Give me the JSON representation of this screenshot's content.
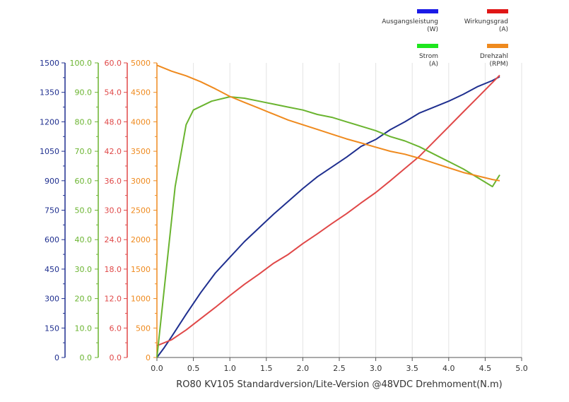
{
  "chart_data": {
    "type": "line",
    "xlabel": "RO80 KV105 Standardversion/Lite-Version @48VDC Drehmoment(N.m)",
    "x_axis": {
      "range": [
        0,
        5.0
      ],
      "ticks": [
        "0.0",
        "0.5",
        "1.0",
        "1.5",
        "2.0",
        "2.5",
        "3.0",
        "3.5",
        "4.0",
        "4.5",
        "5.0"
      ]
    },
    "grid": "vertical",
    "legend_position": "top-right",
    "y_axes": [
      {
        "id": "power",
        "color": "#1f2f8f",
        "range": [
          0,
          1500
        ],
        "ticks": [
          "0",
          "150",
          "300",
          "450",
          "600",
          "750",
          "900",
          "1050",
          "1200",
          "1350",
          "1500"
        ]
      },
      {
        "id": "current",
        "color": "#6ab42f",
        "range": [
          0,
          100
        ],
        "ticks": [
          "0.0",
          "10.0",
          "20.0",
          "30.0",
          "40.0",
          "50.0",
          "60.0",
          "70.0",
          "80.0",
          "90.0",
          "100.0"
        ]
      },
      {
        "id": "efficiency",
        "color": "#e04848",
        "range": [
          0,
          60
        ],
        "ticks": [
          "0.0",
          "6.0",
          "12.0",
          "18.0",
          "24.0",
          "30.0",
          "36.0",
          "42.0",
          "48.0",
          "54.0",
          "60.0"
        ]
      },
      {
        "id": "rpm",
        "color": "#ef8a1e",
        "range": [
          0,
          5000
        ],
        "ticks": [
          "0",
          "500",
          "1000",
          "1500",
          "2000",
          "2500",
          "3000",
          "3500",
          "4000",
          "4500",
          "5000"
        ]
      }
    ],
    "series": [
      {
        "name": "Ausgangsleistung",
        "unit": "(W)",
        "axis": "power",
        "color": "#1f2f8f",
        "legend_color": "#1a1ae6",
        "x": [
          0,
          0.1,
          0.2,
          0.4,
          0.6,
          0.8,
          1.0,
          1.2,
          1.4,
          1.6,
          1.8,
          2.0,
          2.2,
          2.4,
          2.6,
          2.8,
          3.0,
          3.2,
          3.4,
          3.6,
          3.8,
          4.0,
          4.2,
          4.4,
          4.6,
          4.7
        ],
        "values": [
          0,
          50,
          105,
          220,
          330,
          430,
          510,
          590,
          660,
          730,
          795,
          860,
          920,
          970,
          1020,
          1075,
          1110,
          1160,
          1200,
          1245,
          1275,
          1305,
          1340,
          1380,
          1410,
          1430
        ]
      },
      {
        "name": "Wirkungsgrad",
        "unit": "(A)",
        "axis": "efficiency",
        "color": "#e04848",
        "legend_color": "#e01616",
        "x": [
          0,
          0.2,
          0.4,
          0.6,
          0.8,
          1.0,
          1.2,
          1.4,
          1.6,
          1.8,
          2.0,
          2.2,
          2.4,
          2.6,
          2.8,
          3.0,
          3.2,
          3.4,
          3.6,
          3.8,
          4.0,
          4.2,
          4.4,
          4.6,
          4.7
        ],
        "values": [
          2.4,
          3.6,
          5.6,
          7.9,
          10.2,
          12.6,
          14.9,
          17.0,
          19.2,
          21.0,
          23.2,
          25.2,
          27.3,
          29.3,
          31.5,
          33.6,
          36.0,
          38.5,
          41.0,
          44.0,
          47.0,
          50.0,
          53.0,
          56.0,
          57.5
        ]
      },
      {
        "name": "Strom",
        "unit": "(A)",
        "axis": "current",
        "color": "#6ab42f",
        "legend_color": "#1ee61e",
        "x": [
          0,
          0.25,
          0.4,
          0.5,
          0.75,
          1.0,
          1.2,
          1.4,
          1.6,
          1.8,
          2.0,
          2.2,
          2.4,
          2.6,
          2.8,
          3.0,
          3.2,
          3.4,
          3.6,
          3.8,
          4.0,
          4.2,
          4.4,
          4.6,
          4.7
        ],
        "values": [
          0,
          58,
          79,
          84,
          87,
          88.5,
          88,
          87,
          86,
          85,
          84,
          82.5,
          81.5,
          80,
          78.5,
          77,
          75,
          73.5,
          71.5,
          69,
          66.5,
          64,
          61,
          58,
          62
        ]
      },
      {
        "name": "Drehzahl",
        "unit": "(RPM)",
        "axis": "rpm",
        "color": "#ef8a1e",
        "legend_color": "#ef8a1e",
        "x": [
          0,
          0.2,
          0.4,
          0.6,
          0.8,
          1.0,
          1.2,
          1.4,
          1.6,
          1.8,
          2.0,
          2.2,
          2.4,
          2.6,
          2.8,
          3.0,
          3.2,
          3.4,
          3.6,
          3.8,
          4.0,
          4.2,
          4.4,
          4.6,
          4.7
        ],
        "values": [
          4960,
          4860,
          4780,
          4680,
          4560,
          4430,
          4330,
          4230,
          4130,
          4030,
          3950,
          3870,
          3790,
          3710,
          3640,
          3570,
          3500,
          3450,
          3380,
          3300,
          3220,
          3140,
          3080,
          3020,
          3000
        ]
      }
    ]
  }
}
